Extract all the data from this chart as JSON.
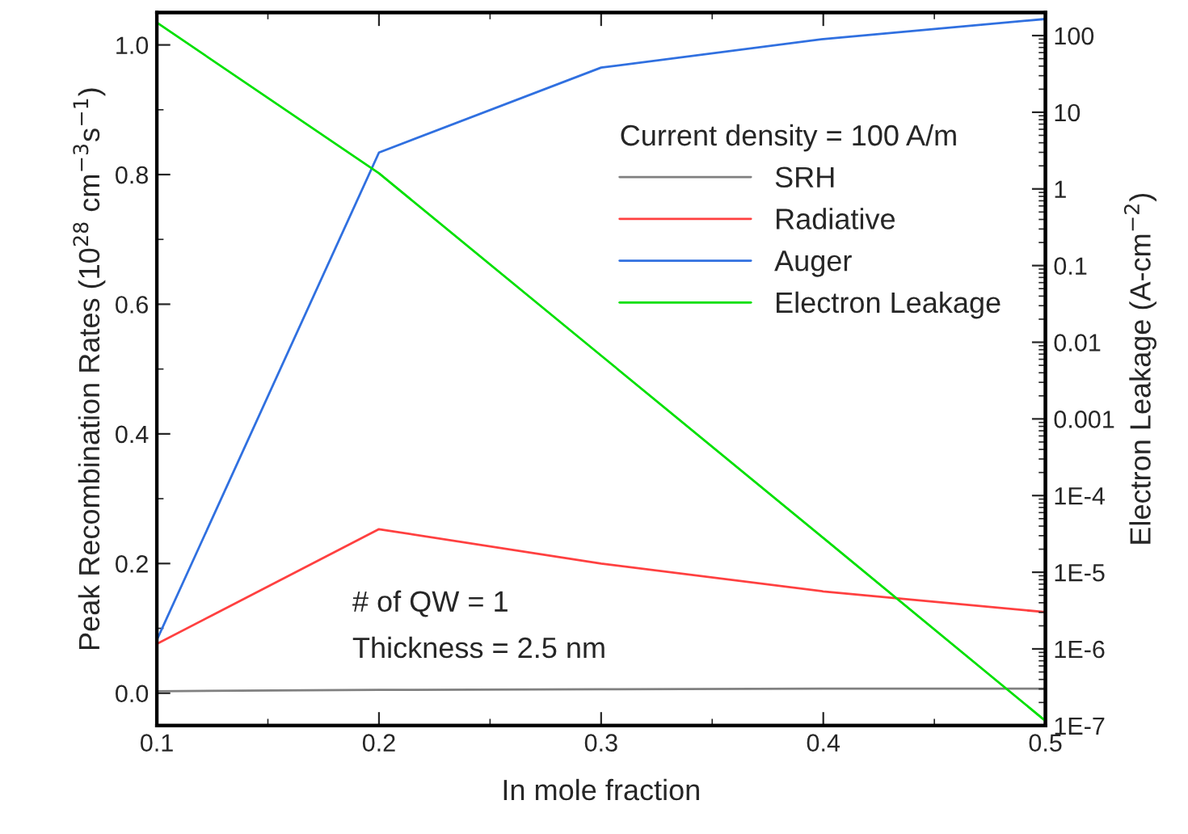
{
  "chart_data": {
    "type": "line",
    "xlabel": "In mole fraction",
    "ylabel": "Peak Recombination Rates (10$^{28}$ cm$^{−3}$s$^{−1}$)",
    "y2label": "Electron Leakage (A-cm$^{−2}$)",
    "legend_title": "Current density = 100 A/m",
    "x": [
      0.1,
      0.2,
      0.3,
      0.4,
      0.5
    ],
    "series": [
      {
        "name": "SRH",
        "color": "#808080",
        "values": [
          0.003,
          0.005,
          0.006,
          0.007,
          0.007
        ]
      },
      {
        "name": "Radiative",
        "color": "#ff4040",
        "values": [
          0.076,
          0.253,
          0.2,
          0.157,
          0.125
        ]
      },
      {
        "name": "Auger",
        "color": "#3070e0",
        "values": [
          0.082,
          0.834,
          0.965,
          1.009,
          1.04
        ]
      },
      {
        "name": "Electron Leakage",
        "color": "#00e000",
        "axis": "y2",
        "values": [
          148,
          1.6,
          0.0067,
          2.8e-05,
          1.15e-07
        ]
      }
    ],
    "xlim": [
      0.1,
      0.5
    ],
    "xticks": [
      0.1,
      0.2,
      0.3,
      0.4,
      0.5
    ],
    "ylim": [
      -0.05,
      1.05
    ],
    "yticks": [
      {
        "value": 0,
        "label": "0.0"
      },
      0.2,
      0.4,
      0.6,
      0.8,
      {
        "value": 1,
        "label": "1.0"
      }
    ],
    "y2lim": [
      1e-07,
      200
    ],
    "y2ticks": [
      {
        "value": 1e-07,
        "label": "1E-7"
      },
      {
        "value": 1e-06,
        "label": "1E-6"
      },
      {
        "value": 1e-05,
        "label": "1E-5"
      },
      {
        "value": 0.0001,
        "label": "1E-4"
      },
      0.001,
      0.01,
      0.1,
      1,
      10,
      100
    ],
    "log": "y2",
    "grid": false,
    "legend": "top right",
    "marker": "none",
    "line_style": "solid",
    "annotations": [
      {
        "text": "# of QW = 1"
      },
      {
        "text": "Thickness = 2.5 nm"
      }
    ]
  }
}
